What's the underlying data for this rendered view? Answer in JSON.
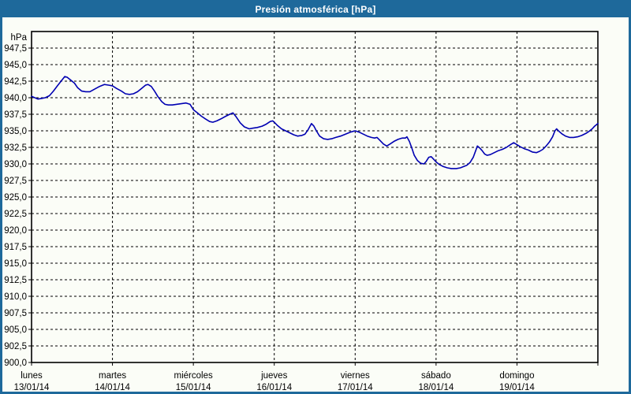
{
  "window": {
    "title": "Presión atmosférica [hPa]"
  },
  "colors": {
    "accent_blue": "#1e699b",
    "background": "#fbfdf7",
    "title_text": "#ffffff",
    "line": "#0000b2",
    "grid": "#000000",
    "text": "#000000"
  },
  "chart_data": {
    "type": "line",
    "title": "Presión atmosférica [hPa]",
    "y_unit_label": "hPa",
    "ylim": [
      900,
      950
    ],
    "ytick_step": 2.5,
    "ytick_labels_top_to_bottom": [
      "947,5",
      "945,0",
      "942,5",
      "940,0",
      "937,5",
      "935,0",
      "932,5",
      "930,0",
      "927,5",
      "925,0",
      "922,5",
      "920,0",
      "917,5",
      "915,0",
      "912,5",
      "910,0",
      "907,5",
      "905,0",
      "902,5",
      "900,0"
    ],
    "grid": "dashed",
    "legend": "none",
    "x_range_days": [
      0,
      7
    ],
    "x_days": [
      {
        "name": "lunes",
        "date": "13/01/14"
      },
      {
        "name": "martes",
        "date": "14/01/14"
      },
      {
        "name": "miércoles",
        "date": "15/01/14"
      },
      {
        "name": "jueves",
        "date": "16/01/14"
      },
      {
        "name": "viernes",
        "date": "17/01/14"
      },
      {
        "name": "sábado",
        "date": "18/01/14"
      },
      {
        "name": "domingo",
        "date": "19/01/14"
      }
    ],
    "series": [
      {
        "name": "presion_atmosferica_hpa",
        "points": [
          [
            0.0,
            940.2
          ],
          [
            0.04,
            940.0
          ],
          [
            0.08,
            939.8
          ],
          [
            0.13,
            939.9
          ],
          [
            0.17,
            940.0
          ],
          [
            0.22,
            940.3
          ],
          [
            0.27,
            941.0
          ],
          [
            0.32,
            941.8
          ],
          [
            0.37,
            942.6
          ],
          [
            0.41,
            943.2
          ],
          [
            0.44,
            943.1
          ],
          [
            0.48,
            942.7
          ],
          [
            0.53,
            942.2
          ],
          [
            0.57,
            941.5
          ],
          [
            0.62,
            941.0
          ],
          [
            0.67,
            940.9
          ],
          [
            0.72,
            940.9
          ],
          [
            0.78,
            941.3
          ],
          [
            0.84,
            941.7
          ],
          [
            0.9,
            942.0
          ],
          [
            0.95,
            941.9
          ],
          [
            1.0,
            941.8
          ],
          [
            1.05,
            941.4
          ],
          [
            1.11,
            941.0
          ],
          [
            1.16,
            940.6
          ],
          [
            1.21,
            940.5
          ],
          [
            1.26,
            940.6
          ],
          [
            1.31,
            940.9
          ],
          [
            1.36,
            941.4
          ],
          [
            1.41,
            941.9
          ],
          [
            1.44,
            942.0
          ],
          [
            1.48,
            941.7
          ],
          [
            1.52,
            941.0
          ],
          [
            1.56,
            940.2
          ],
          [
            1.61,
            939.4
          ],
          [
            1.65,
            939.0
          ],
          [
            1.69,
            938.9
          ],
          [
            1.74,
            938.9
          ],
          [
            1.79,
            939.0
          ],
          [
            1.85,
            939.1
          ],
          [
            1.91,
            939.2
          ],
          [
            1.96,
            939.0
          ],
          [
            2.0,
            938.2
          ],
          [
            2.05,
            937.7
          ],
          [
            2.1,
            937.2
          ],
          [
            2.15,
            936.8
          ],
          [
            2.2,
            936.4
          ],
          [
            2.24,
            936.3
          ],
          [
            2.29,
            936.5
          ],
          [
            2.34,
            936.8
          ],
          [
            2.4,
            937.2
          ],
          [
            2.45,
            937.5
          ],
          [
            2.49,
            937.7
          ],
          [
            2.53,
            937.1
          ],
          [
            2.58,
            936.2
          ],
          [
            2.63,
            935.6
          ],
          [
            2.69,
            935.3
          ],
          [
            2.74,
            935.4
          ],
          [
            2.79,
            935.5
          ],
          [
            2.85,
            935.7
          ],
          [
            2.9,
            936.0
          ],
          [
            2.95,
            936.4
          ],
          [
            2.98,
            936.5
          ],
          [
            3.0,
            936.3
          ],
          [
            3.04,
            935.8
          ],
          [
            3.09,
            935.3
          ],
          [
            3.14,
            935.0
          ],
          [
            3.19,
            934.7
          ],
          [
            3.24,
            934.4
          ],
          [
            3.29,
            934.2
          ],
          [
            3.34,
            934.3
          ],
          [
            3.38,
            934.5
          ],
          [
            3.42,
            935.2
          ],
          [
            3.46,
            936.1
          ],
          [
            3.49,
            935.7
          ],
          [
            3.52,
            935.0
          ],
          [
            3.56,
            934.2
          ],
          [
            3.61,
            933.8
          ],
          [
            3.66,
            933.7
          ],
          [
            3.71,
            933.8
          ],
          [
            3.76,
            934.0
          ],
          [
            3.82,
            934.2
          ],
          [
            3.88,
            934.5
          ],
          [
            3.94,
            934.8
          ],
          [
            4.0,
            935.0
          ],
          [
            4.05,
            934.8
          ],
          [
            4.1,
            934.5
          ],
          [
            4.15,
            934.2
          ],
          [
            4.2,
            934.0
          ],
          [
            4.24,
            933.9
          ],
          [
            4.27,
            934.0
          ],
          [
            4.31,
            933.5
          ],
          [
            4.35,
            933.0
          ],
          [
            4.39,
            932.7
          ],
          [
            4.43,
            933.0
          ],
          [
            4.48,
            933.4
          ],
          [
            4.53,
            933.7
          ],
          [
            4.58,
            933.9
          ],
          [
            4.62,
            933.9
          ],
          [
            4.64,
            934.1
          ],
          [
            4.67,
            933.4
          ],
          [
            4.7,
            932.4
          ],
          [
            4.73,
            931.3
          ],
          [
            4.77,
            930.5
          ],
          [
            4.81,
            930.1
          ],
          [
            4.85,
            930.0
          ],
          [
            4.88,
            930.4
          ],
          [
            4.91,
            931.0
          ],
          [
            4.94,
            931.1
          ],
          [
            4.97,
            930.7
          ],
          [
            5.0,
            930.3
          ],
          [
            5.04,
            929.9
          ],
          [
            5.09,
            929.6
          ],
          [
            5.14,
            929.4
          ],
          [
            5.19,
            929.3
          ],
          [
            5.25,
            929.3
          ],
          [
            5.3,
            929.4
          ],
          [
            5.34,
            929.6
          ],
          [
            5.38,
            929.8
          ],
          [
            5.42,
            930.2
          ],
          [
            5.46,
            931.0
          ],
          [
            5.49,
            932.0
          ],
          [
            5.51,
            932.7
          ],
          [
            5.54,
            932.4
          ],
          [
            5.57,
            932.0
          ],
          [
            5.6,
            931.5
          ],
          [
            5.63,
            931.3
          ],
          [
            5.67,
            931.4
          ],
          [
            5.72,
            931.7
          ],
          [
            5.77,
            932.0
          ],
          [
            5.82,
            932.2
          ],
          [
            5.87,
            932.5
          ],
          [
            5.92,
            932.9
          ],
          [
            5.96,
            933.2
          ],
          [
            6.0,
            932.9
          ],
          [
            6.04,
            932.6
          ],
          [
            6.09,
            932.3
          ],
          [
            6.14,
            932.1
          ],
          [
            6.19,
            931.8
          ],
          [
            6.24,
            931.7
          ],
          [
            6.28,
            931.9
          ],
          [
            6.32,
            932.2
          ],
          [
            6.36,
            932.7
          ],
          [
            6.4,
            933.3
          ],
          [
            6.44,
            934.1
          ],
          [
            6.47,
            935.0
          ],
          [
            6.49,
            935.3
          ],
          [
            6.52,
            934.9
          ],
          [
            6.56,
            934.5
          ],
          [
            6.6,
            934.2
          ],
          [
            6.65,
            934.0
          ],
          [
            6.7,
            934.0
          ],
          [
            6.75,
            934.1
          ],
          [
            6.8,
            934.3
          ],
          [
            6.85,
            934.6
          ],
          [
            6.89,
            934.9
          ],
          [
            6.93,
            935.3
          ],
          [
            6.96,
            935.7
          ],
          [
            7.0,
            936.1
          ]
        ]
      }
    ]
  }
}
